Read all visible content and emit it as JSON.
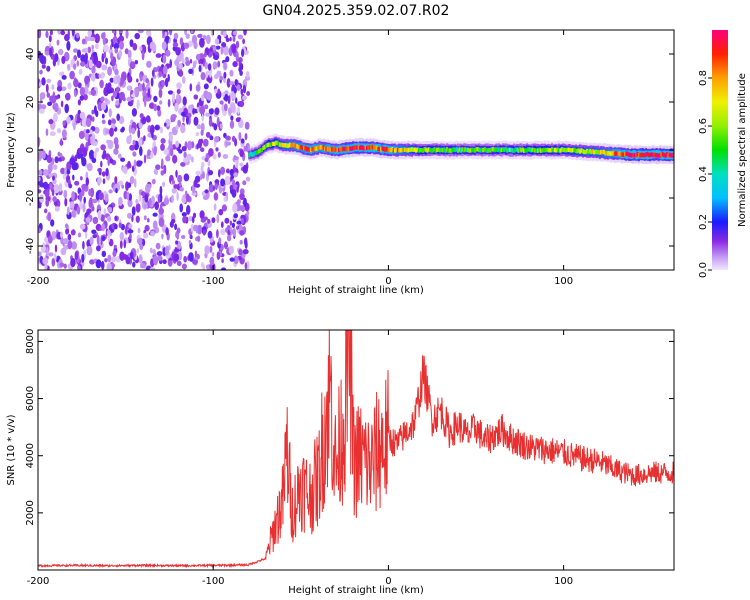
{
  "title": "GN04.2025.359.02.07.R02",
  "chart_data": [
    {
      "type": "heatmap",
      "name": "spectrogram",
      "xlabel": "Height of straight line (km)",
      "ylabel": "Frequency (Hz)",
      "xlim": [
        -200,
        163
      ],
      "ylim": [
        -50,
        50
      ],
      "x_ticks": [
        -200,
        -100,
        0,
        100
      ],
      "x_tick_labels": [
        "-200",
        "-100",
        "0",
        "100"
      ],
      "y_ticks": [
        40,
        20,
        0,
        -20,
        -40
      ],
      "y_tick_labels": [
        "40",
        "20",
        "0",
        "-20",
        "-40"
      ],
      "noise_region_x": [
        -200,
        -80
      ],
      "signal_track": {
        "x": [
          -80,
          -75,
          -70,
          -65,
          -60,
          -55,
          -50,
          -45,
          -40,
          -30,
          -20,
          -10,
          0,
          20,
          40,
          60,
          80,
          100,
          120,
          140,
          163
        ],
        "freq": [
          -2,
          -1,
          2,
          3,
          2,
          2,
          1,
          0,
          1,
          0,
          1,
          1,
          0,
          0,
          0,
          0,
          0,
          0,
          -1,
          -2,
          -2
        ],
        "amplitude": [
          0.35,
          0.45,
          0.55,
          0.6,
          0.7,
          0.75,
          0.8,
          0.85,
          0.8,
          0.85,
          0.9,
          0.9,
          0.85,
          0.55,
          0.5,
          0.5,
          0.55,
          0.6,
          0.7,
          0.95,
          0.95
        ]
      },
      "colorbar": {
        "label": "Normalized spectral amplitude",
        "ticks": [
          0.0,
          0.2,
          0.4,
          0.6,
          0.8
        ],
        "tick_labels": [
          "0.0",
          "0.2",
          "0.4",
          "0.6",
          "0.8"
        ],
        "range": [
          0,
          1
        ]
      }
    },
    {
      "type": "line",
      "name": "snr",
      "xlabel": "Height of straight line (km)",
      "ylabel": "SNR (10 * v/v)",
      "xlim": [
        -200,
        163
      ],
      "ylim": [
        0,
        8400
      ],
      "x_ticks": [
        -200,
        -100,
        0,
        100
      ],
      "x_tick_labels": [
        "-200",
        "-100",
        "0",
        "100"
      ],
      "y_ticks": [
        2000,
        4000,
        6000,
        8000
      ],
      "y_tick_labels": [
        "2000",
        "4000",
        "6000",
        "8000"
      ],
      "color": "#e83030",
      "series": [
        {
          "x": [
            -200,
            -180,
            -160,
            -140,
            -120,
            -100,
            -80,
            -70,
            -65,
            -60,
            -58,
            -55,
            -50,
            -45,
            -40,
            -35,
            -33,
            -30,
            -25,
            -22,
            -20,
            -15,
            -10,
            -5,
            0,
            5,
            10,
            15,
            20,
            25,
            30,
            35,
            40,
            45,
            50,
            55,
            60,
            65,
            70,
            80,
            90,
            100,
            110,
            120,
            130,
            140,
            150,
            163
          ],
          "y": [
            150,
            160,
            150,
            160,
            150,
            160,
            180,
            400,
            1500,
            2500,
            4300,
            2000,
            3000,
            2600,
            3200,
            5600,
            6200,
            3500,
            5500,
            8300,
            3800,
            3900,
            3600,
            4300,
            4600,
            4400,
            4800,
            5200,
            6900,
            5300,
            5600,
            4800,
            5100,
            4700,
            5000,
            4500,
            4700,
            4900,
            4600,
            4300,
            4200,
            4100,
            3900,
            3800,
            3500,
            3300,
            3400,
            3400
          ]
        }
      ]
    }
  ]
}
